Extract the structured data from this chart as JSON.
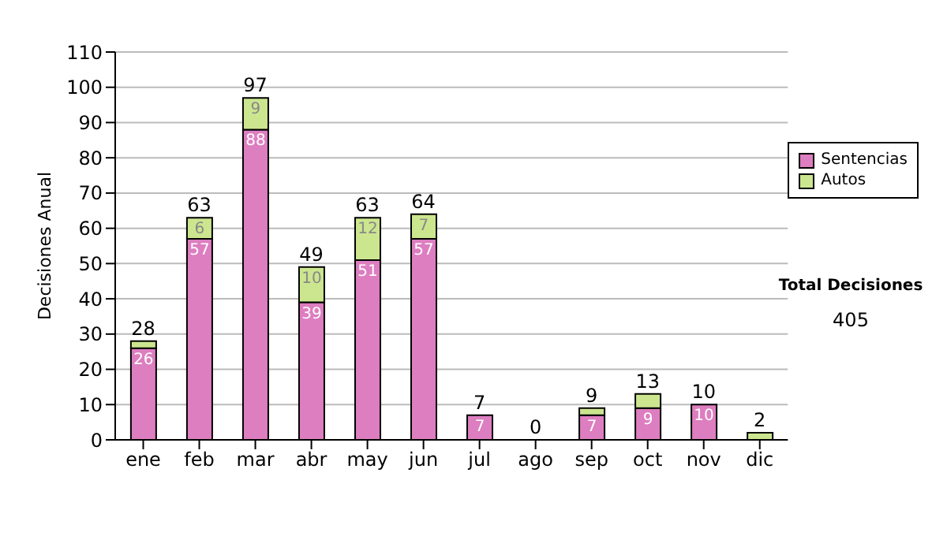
{
  "chart_data": {
    "type": "bar",
    "stacked": true,
    "ylabel": "Decisiones Anual",
    "categories": [
      "ene",
      "feb",
      "mar",
      "abr",
      "may",
      "jun",
      "jul",
      "ago",
      "sep",
      "oct",
      "nov",
      "dic"
    ],
    "series": [
      {
        "name": "Sentencias",
        "color": "#dd7ec0",
        "values": [
          26,
          57,
          88,
          39,
          51,
          57,
          7,
          0,
          7,
          9,
          10,
          0
        ],
        "value_labels": [
          "26",
          "57",
          "88",
          "39",
          "51",
          "57",
          "7",
          null,
          "7",
          "9",
          "10",
          null
        ]
      },
      {
        "name": "Autos",
        "color": "#cce68f",
        "values": [
          2,
          6,
          9,
          10,
          12,
          7,
          0,
          0,
          2,
          4,
          0,
          2
        ],
        "value_labels": [
          null,
          "6",
          "9",
          "10",
          "12",
          "7",
          null,
          null,
          null,
          null,
          null,
          null
        ]
      }
    ],
    "totals": [
      "28",
      "63",
      "97",
      "49",
      "63",
      "64",
      "7",
      "0",
      "9",
      "13",
      "10",
      "2"
    ],
    "ylim": [
      0,
      110
    ],
    "yticks": [
      0,
      10,
      20,
      30,
      40,
      50,
      60,
      70,
      80,
      90,
      100,
      110
    ],
    "grid": "y",
    "legend": "right",
    "annotations": [
      "Total Decisiones",
      "405"
    ]
  }
}
